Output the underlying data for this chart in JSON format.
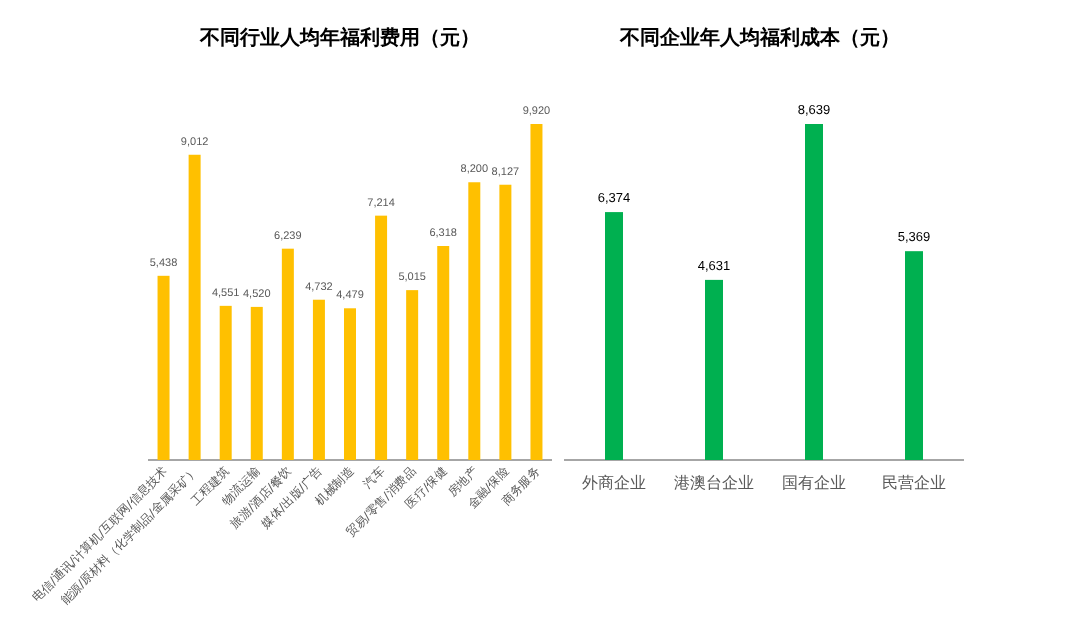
{
  "chart_data": [
    {
      "type": "bar",
      "title": "不同行业人均年福利费用（元）",
      "categories": [
        "电信/通讯/计算机/互联网/信息技术",
        "能源/原材料（化学制品/金属采矿）",
        "工程建筑",
        "物流运输",
        "旅游/酒店/餐饮",
        "媒体/出版/广告",
        "机械制造",
        "汽车",
        "贸易/零售/消费品",
        "医疗/保健",
        "房地产",
        "金融/保险",
        "商务服务"
      ],
      "values": [
        5438,
        9012,
        4551,
        4520,
        6239,
        4732,
        4479,
        7214,
        5015,
        6318,
        8200,
        8127,
        9920
      ],
      "value_labels": [
        "5,438",
        "9,012",
        "4,551",
        "4,520",
        "6,239",
        "4,732",
        "4,479",
        "7,214",
        "5,015",
        "6,318",
        "8,200",
        "8,127",
        "9,920"
      ],
      "color": "#ffc000"
    },
    {
      "type": "bar",
      "title": "不同企业年人均福利成本（元）",
      "categories": [
        "外商企业",
        "港澳台企业",
        "国有企业",
        "民营企业"
      ],
      "values": [
        6374,
        4631,
        8639,
        5369
      ],
      "value_labels": [
        "6,374",
        "4,631",
        "8,639",
        "5,369"
      ],
      "color": "#00b050"
    }
  ]
}
